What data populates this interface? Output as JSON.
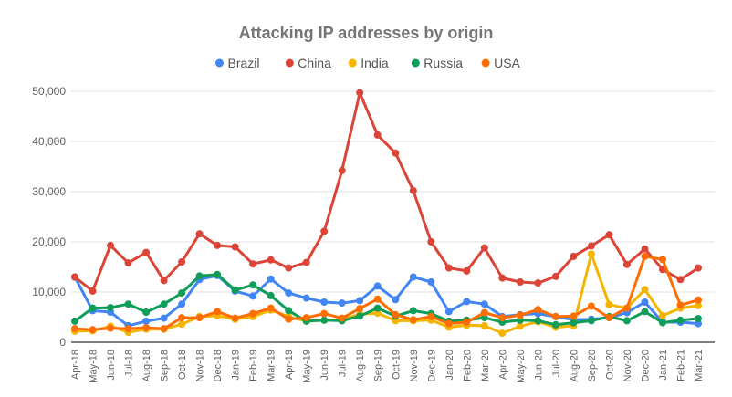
{
  "chart_data": {
    "type": "line",
    "title": "Attacking IP addresses by origin",
    "xlabel": "",
    "ylabel": "",
    "ylim": [
      0,
      50000
    ],
    "yticks": [
      0,
      10000,
      20000,
      30000,
      40000,
      50000
    ],
    "ytick_labels": [
      "0",
      "10,000",
      "20,000",
      "30,000",
      "40,000",
      "50,000"
    ],
    "grid": true,
    "legend_position": "top",
    "categories": [
      "Apr-18",
      "May-18",
      "Jun-18",
      "Jul-18",
      "Aug-18",
      "Sep-18",
      "Oct-18",
      "Nov-18",
      "Dec-18",
      "Jan-19",
      "Feb-19",
      "Mar-19",
      "Apr-19",
      "May-19",
      "Jun-19",
      "Jul-19",
      "Aug-19",
      "Sep-19",
      "Oct-19",
      "Nov-19",
      "Dec-19",
      "Jan-20",
      "Feb-20",
      "Mar-20",
      "Apr-20",
      "May-20",
      "Jun-20",
      "Jul-20",
      "Aug-20",
      "Sep-20",
      "Oct-20",
      "Nov-20",
      "Dec-20",
      "Jan-21",
      "Feb-21",
      "Mar-21"
    ],
    "series": [
      {
        "name": "Brazil",
        "color": "#4285f4",
        "values": [
          13000,
          6300,
          6000,
          3300,
          4200,
          4800,
          7600,
          12500,
          13300,
          10200,
          9200,
          12600,
          9800,
          8800,
          8000,
          7800,
          8300,
          11200,
          8500,
          13000,
          12000,
          6100,
          8100,
          7600,
          5100,
          5500,
          5700,
          5100,
          4500,
          4600,
          4900,
          5900,
          8000,
          4000,
          4000,
          3700
        ]
      },
      {
        "name": "China",
        "color": "#db4437",
        "values": [
          13000,
          10200,
          19300,
          15800,
          17900,
          12300,
          16000,
          21600,
          19300,
          19000,
          15600,
          16400,
          14800,
          15900,
          22100,
          34200,
          49700,
          41300,
          37700,
          30200,
          20000,
          14800,
          14200,
          18800,
          12800,
          12000,
          11800,
          13100,
          17100,
          19200,
          21400,
          15500,
          18600,
          14500,
          12500,
          14800
        ]
      },
      {
        "name": "India",
        "color": "#f4b400",
        "values": [
          2200,
          2300,
          3200,
          2000,
          2600,
          2600,
          3600,
          5100,
          5300,
          4600,
          5100,
          6400,
          5100,
          4200,
          4400,
          4500,
          5600,
          5800,
          4300,
          4300,
          4400,
          3000,
          3400,
          3300,
          1800,
          3200,
          4100,
          3000,
          3300,
          17600,
          7500,
          6800,
          10500,
          5300,
          6800,
          7300
        ]
      },
      {
        "name": "Russia",
        "color": "#0f9d58",
        "values": [
          4200,
          6800,
          6900,
          7600,
          6000,
          7600,
          9800,
          13200,
          13500,
          10400,
          11400,
          9300,
          6300,
          4200,
          4400,
          4300,
          5200,
          6800,
          5200,
          6300,
          5700,
          4200,
          4400,
          4900,
          4000,
          4400,
          4300,
          3500,
          3900,
          4300,
          5100,
          4300,
          6100,
          3900,
          4400,
          4700
        ]
      },
      {
        "name": "USA",
        "color": "#ff6d00",
        "values": [
          2700,
          2500,
          2800,
          2700,
          2900,
          2700,
          4900,
          4900,
          6100,
          4800,
          5700,
          6800,
          4600,
          4900,
          5700,
          4800,
          6700,
          8600,
          5500,
          4500,
          5100,
          3700,
          4000,
          5900,
          4900,
          5400,
          6500,
          5100,
          5200,
          7200,
          4900,
          6800,
          17100,
          16500,
          7400,
          8400
        ]
      }
    ]
  }
}
